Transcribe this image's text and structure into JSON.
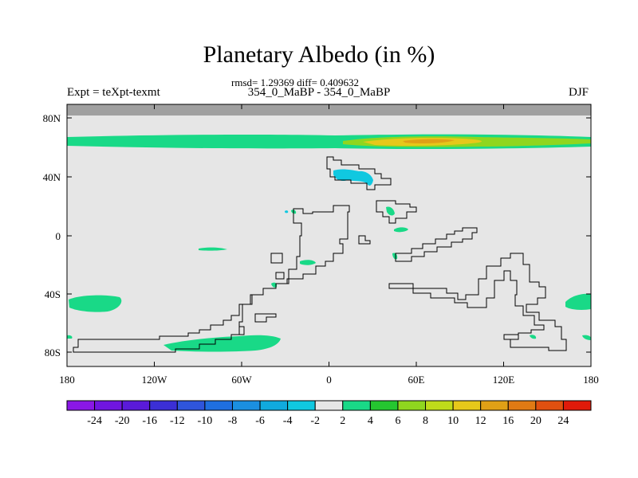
{
  "title": "Planetary Albedo (in %)",
  "stats": "rmsd= 1.29369 diff= 0.409632",
  "expt": "Expt = teXpt-texmt",
  "comparison": "354_0_MaBP - 354_0_MaBP",
  "season": "DJF",
  "x_ticks": [
    "180",
    "120W",
    "60W",
    "0",
    "60E",
    "120E",
    "180"
  ],
  "y_ticks": [
    "80N",
    "40N",
    "0",
    "40S",
    "80S"
  ],
  "colorbar": {
    "labels": [
      "-24",
      "-20",
      "-16",
      "-12",
      "-10",
      "-8",
      "-6",
      "-4",
      "-2",
      "2",
      "4",
      "6",
      "8",
      "10",
      "12",
      "16",
      "20",
      "24"
    ],
    "colors": [
      "#8a17e6",
      "#7015e0",
      "#5a1ad9",
      "#3b2fd6",
      "#2f55dc",
      "#1f6fe0",
      "#1b8fe0",
      "#10aade",
      "#10c8e0",
      "#e6e6e6",
      "#19d987",
      "#25c630",
      "#8fd61f",
      "#bedb1a",
      "#e6c81a",
      "#e0a016",
      "#e07a14",
      "#e05010",
      "#e01a0a"
    ]
  },
  "map": {
    "background": "#e6e6e6",
    "missing_color": "#a0a0a0",
    "coast_color": "#000000",
    "anomaly_colors": {
      "pos_small": "#19d987",
      "pos_mid": "#8fd61f",
      "pos_high": "#e6c81a",
      "pos_higher": "#e0a016",
      "neg_small": "#10c8e0"
    }
  }
}
